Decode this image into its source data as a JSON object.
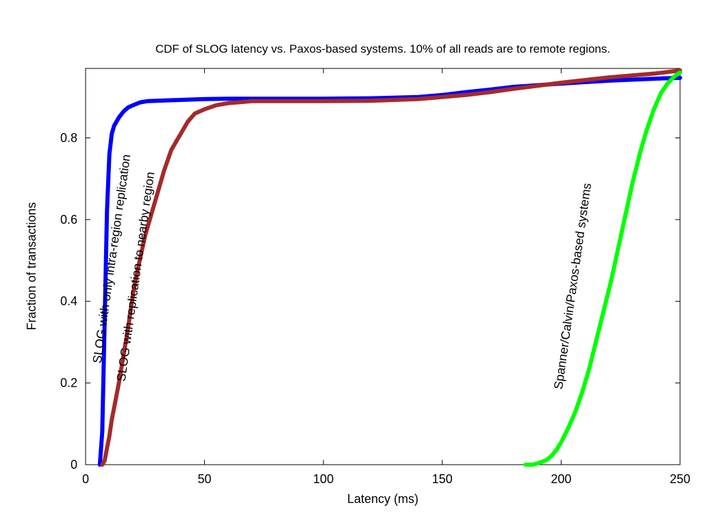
{
  "chart_data": {
    "type": "line",
    "title": "CDF of SLOG latency vs. Paxos-based systems. 10% of all reads are to remote regions.",
    "xlabel": "Latency (ms)",
    "ylabel": "Fraction of transactions",
    "xlim": [
      0,
      250
    ],
    "ylim": [
      0,
      0.97
    ],
    "xticks": [
      0,
      50,
      100,
      150,
      200,
      250
    ],
    "yticks": [
      0,
      0.2,
      0.4,
      0.6,
      0.8
    ],
    "xtick_labels": [
      "0",
      "50",
      "100",
      "150",
      "200",
      "250"
    ],
    "ytick_labels": [
      "0",
      "0.2",
      "0.4",
      "0.6",
      "0.8"
    ],
    "grid": false,
    "series": [
      {
        "name": "SLOG with only intra-region replication",
        "color": "#0000ff",
        "x": [
          6,
          7,
          8,
          9,
          10,
          11,
          12,
          14,
          16,
          18,
          20,
          23,
          26,
          30,
          40,
          50,
          60,
          70,
          80,
          100,
          120,
          140,
          150,
          160,
          170,
          180,
          200,
          220,
          240,
          250
        ],
        "y": [
          0,
          0.08,
          0.35,
          0.62,
          0.76,
          0.81,
          0.83,
          0.85,
          0.865,
          0.875,
          0.88,
          0.887,
          0.89,
          0.891,
          0.893,
          0.895,
          0.896,
          0.896,
          0.896,
          0.896,
          0.897,
          0.9,
          0.905,
          0.912,
          0.918,
          0.925,
          0.933,
          0.94,
          0.945,
          0.947
        ]
      },
      {
        "name": "SLOG with replication to nearby region",
        "color": "#a52a2a",
        "x": [
          7,
          8,
          9,
          10,
          11,
          12,
          14,
          16,
          18,
          20,
          22,
          25,
          28,
          30,
          33,
          36,
          38,
          40,
          43,
          46,
          50,
          55,
          60,
          70,
          80,
          100,
          120,
          140,
          150,
          160,
          170,
          180,
          200,
          220,
          240,
          250
        ],
        "y": [
          0,
          0.01,
          0.04,
          0.07,
          0.11,
          0.14,
          0.2,
          0.27,
          0.34,
          0.42,
          0.48,
          0.56,
          0.62,
          0.66,
          0.72,
          0.77,
          0.79,
          0.81,
          0.84,
          0.86,
          0.87,
          0.88,
          0.885,
          0.89,
          0.89,
          0.89,
          0.891,
          0.895,
          0.9,
          0.905,
          0.912,
          0.92,
          0.935,
          0.948,
          0.958,
          0.965
        ]
      },
      {
        "name": "Spanner/Calvin/Paxos-based systems",
        "color": "#00ff00",
        "x": [
          185,
          188,
          190,
          192,
          194,
          196,
          198,
          200,
          203,
          206,
          209,
          212,
          215,
          218,
          221,
          224,
          227,
          230,
          233,
          236,
          239,
          242,
          245,
          248,
          250
        ],
        "y": [
          0,
          0,
          0.003,
          0.007,
          0.012,
          0.022,
          0.036,
          0.055,
          0.09,
          0.13,
          0.18,
          0.24,
          0.31,
          0.38,
          0.45,
          0.53,
          0.61,
          0.69,
          0.76,
          0.82,
          0.87,
          0.91,
          0.935,
          0.952,
          0.96
        ]
      }
    ],
    "annotations": [
      {
        "text": "SLOG with only intra-region replication",
        "series": 0
      },
      {
        "text": "SLOG with replication to nearby region",
        "series": 1
      },
      {
        "text": "Spanner/Calvin/Paxos-based systems",
        "series": 2
      }
    ]
  }
}
